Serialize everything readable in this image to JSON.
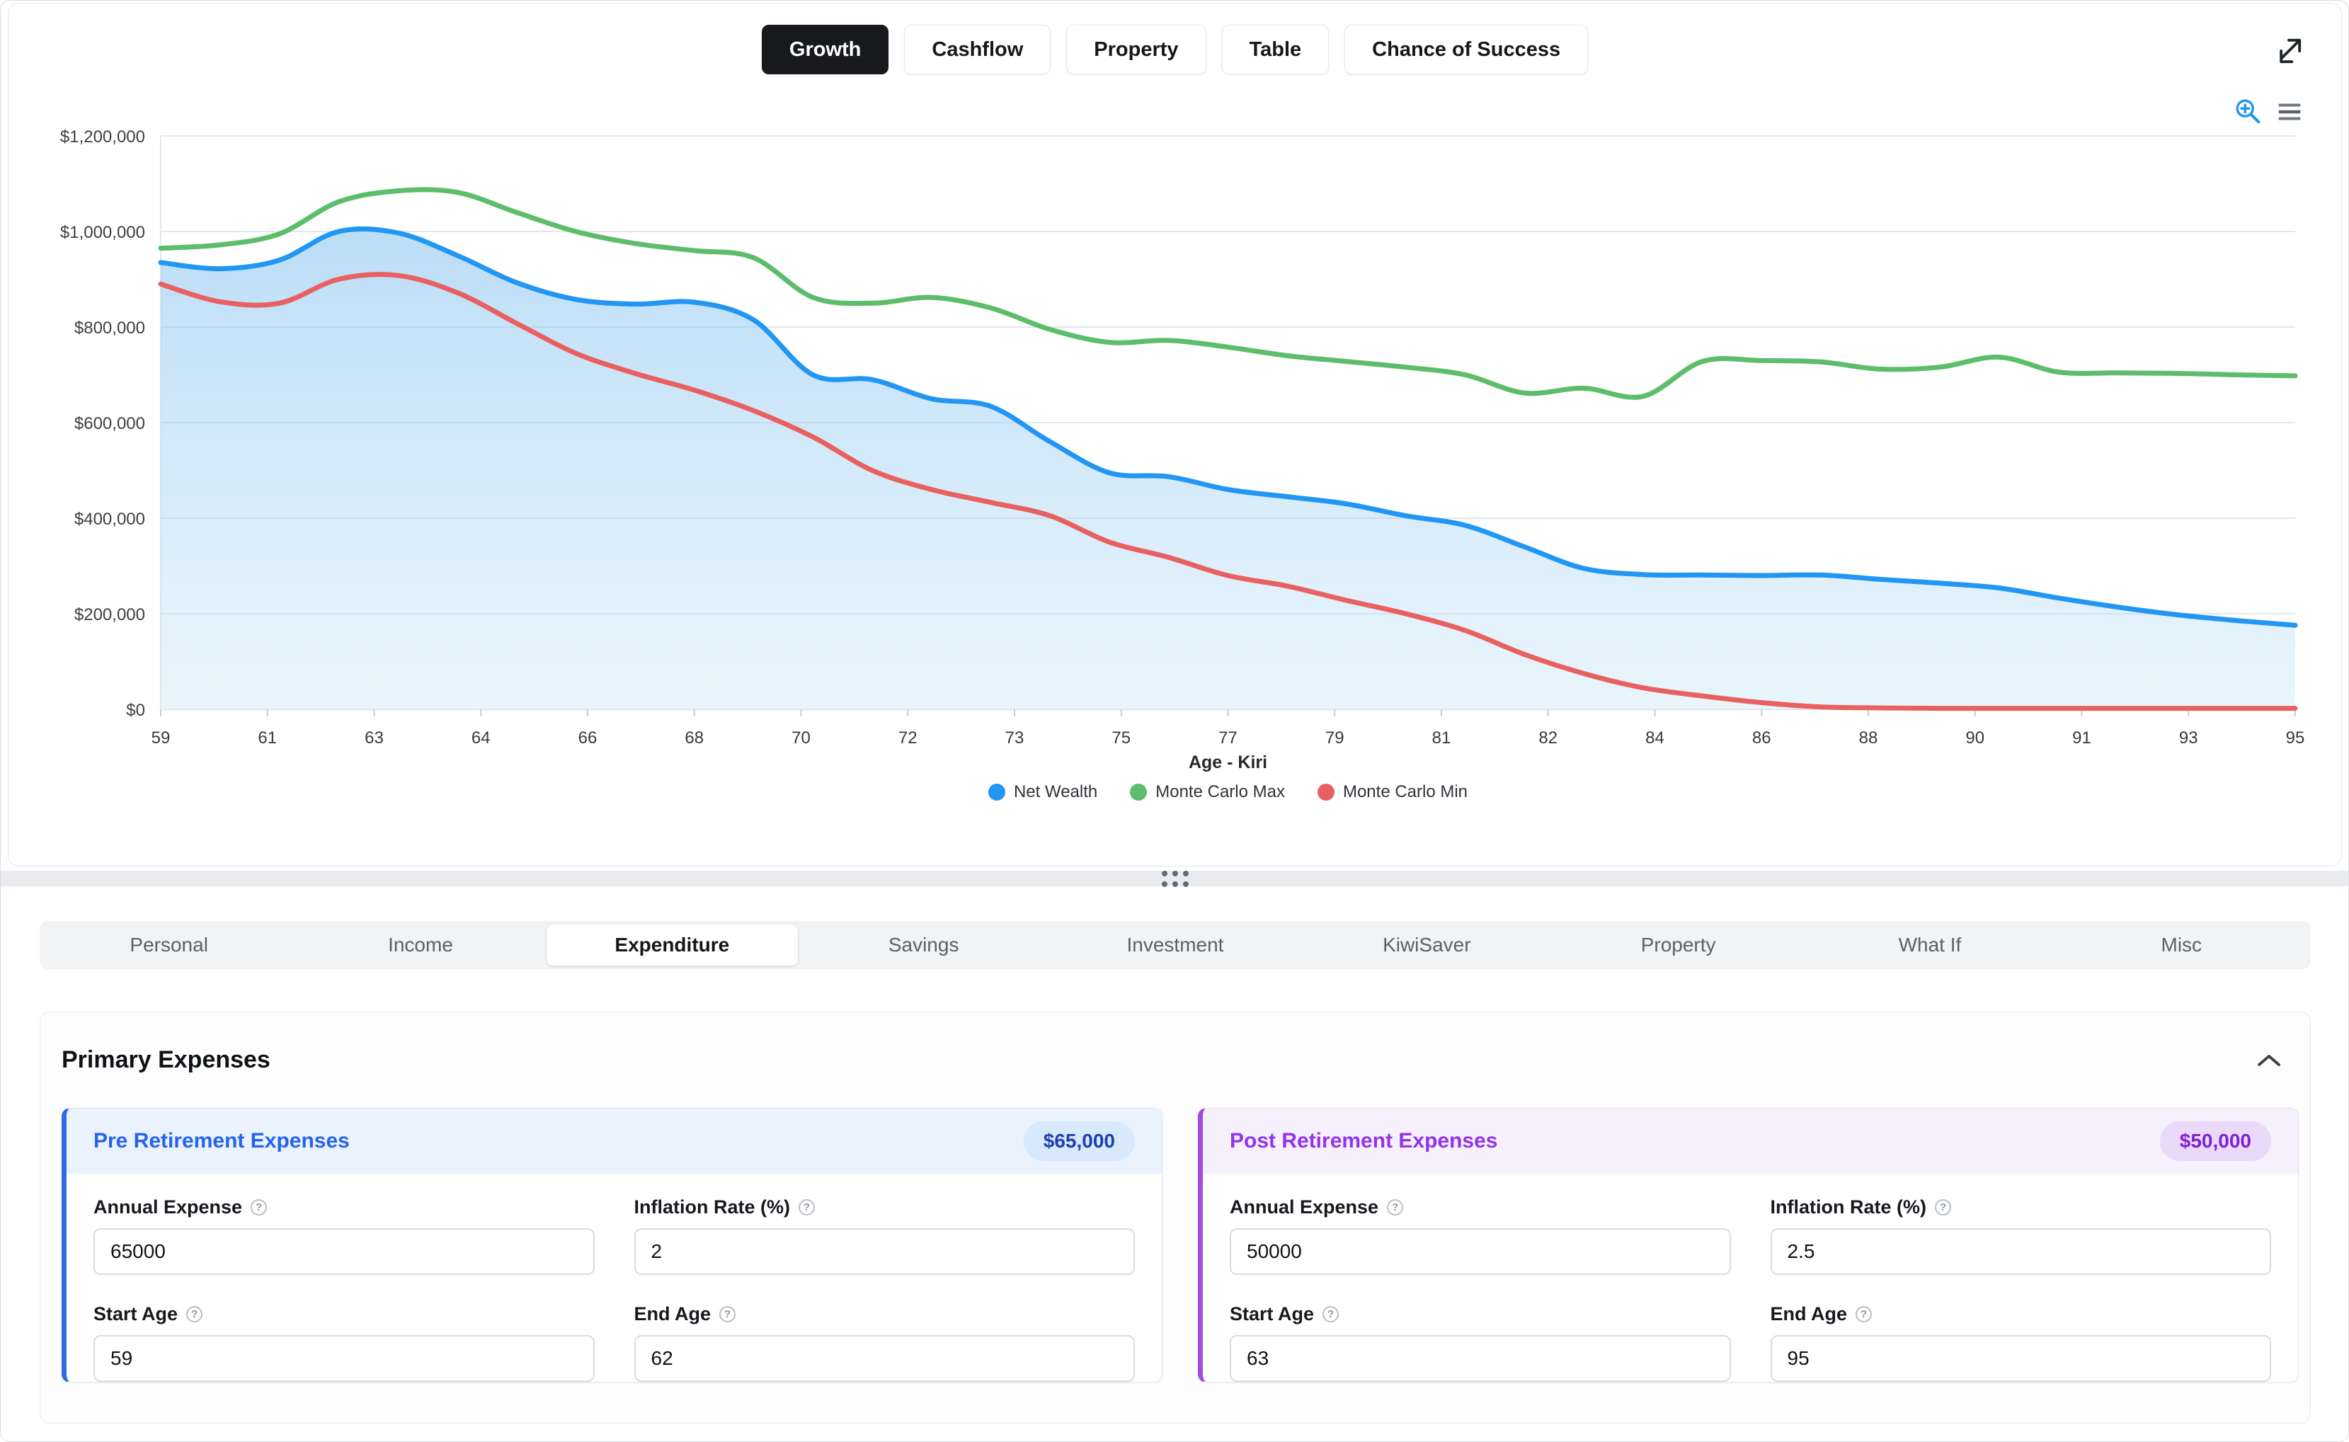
{
  "toolbar_tabs": [
    {
      "label": "Growth",
      "active": true
    },
    {
      "label": "Cashflow",
      "active": false
    },
    {
      "label": "Property",
      "active": false
    },
    {
      "label": "Table",
      "active": false
    },
    {
      "label": "Chance of Success",
      "active": false
    }
  ],
  "chart_data": {
    "type": "line",
    "x": [
      59,
      60,
      61,
      62,
      63,
      64,
      65,
      66,
      67,
      68,
      69,
      70,
      71,
      72,
      73,
      74,
      75,
      76,
      77,
      78,
      79,
      80,
      81,
      82,
      83,
      84,
      85,
      86,
      87,
      88,
      89,
      90,
      91,
      92,
      93,
      94,
      95
    ],
    "x_tick_labels": [
      "59",
      "61",
      "63",
      "64",
      "66",
      "68",
      "70",
      "72",
      "73",
      "75",
      "77",
      "79",
      "81",
      "82",
      "84",
      "86",
      "88",
      "90",
      "91",
      "93",
      "95"
    ],
    "xlabel": "Age - Kiri",
    "ylim": [
      0,
      1200000
    ],
    "grid": true,
    "legend_position": "bottom",
    "y_ticks": [
      {
        "label": "$1,200,000",
        "value": 1200000
      },
      {
        "label": "$1,000,000",
        "value": 1000000
      },
      {
        "label": "$800,000",
        "value": 800000
      },
      {
        "label": "$600,000",
        "value": 600000
      },
      {
        "label": "$400,000",
        "value": 400000
      },
      {
        "label": "$200,000",
        "value": 200000
      },
      {
        "label": "$0",
        "value": 0
      }
    ],
    "series": [
      {
        "name": "Net Wealth",
        "color": "#2196f3",
        "fill": true,
        "values": [
          935000,
          922000,
          940000,
          1000000,
          997000,
          950000,
          893000,
          858000,
          848000,
          852000,
          815000,
          700000,
          690000,
          650000,
          634000,
          560000,
          495000,
          487000,
          460000,
          445000,
          430000,
          405000,
          385000,
          340000,
          295000,
          282000,
          281000,
          280000,
          281000,
          272000,
          264000,
          254000,
          233000,
          214000,
          198000,
          186000,
          176000
        ]
      },
      {
        "name": "Monte Carlo Max",
        "color": "#5cbd6a",
        "fill": false,
        "values": [
          965000,
          972000,
          995000,
          1062000,
          1085000,
          1082000,
          1040000,
          1000000,
          975000,
          960000,
          945000,
          862000,
          850000,
          862000,
          840000,
          795000,
          768000,
          772000,
          758000,
          740000,
          728000,
          716000,
          700000,
          662000,
          672000,
          655000,
          728000,
          730000,
          727000,
          712000,
          716000,
          737000,
          706000,
          704000,
          703000,
          700000,
          698000
        ]
      },
      {
        "name": "Monte Carlo Min",
        "color": "#e96060",
        "fill": false,
        "values": [
          890000,
          853000,
          850000,
          900000,
          908000,
          872000,
          808000,
          745000,
          703000,
          668000,
          625000,
          570000,
          500000,
          460000,
          433000,
          405000,
          350000,
          318000,
          280000,
          258000,
          228000,
          200000,
          165000,
          115000,
          75000,
          45000,
          28000,
          14000,
          5000,
          3000,
          2000,
          2000,
          2000,
          2000,
          2000,
          2000,
          2000
        ]
      }
    ],
    "area_fill_top": "rgba(120,188,238,0.50)",
    "area_fill_bottom": "rgba(205,232,250,0.42)"
  },
  "section_tabs": [
    {
      "label": "Personal",
      "active": false
    },
    {
      "label": "Income",
      "active": false
    },
    {
      "label": "Expenditure",
      "active": true
    },
    {
      "label": "Savings",
      "active": false
    },
    {
      "label": "Investment",
      "active": false
    },
    {
      "label": "KiwiSaver",
      "active": false
    },
    {
      "label": "Property",
      "active": false
    },
    {
      "label": "What If",
      "active": false
    },
    {
      "label": "Misc",
      "active": false
    }
  ],
  "primary_expenses": {
    "title": "Primary Expenses",
    "cards": [
      {
        "title": "Pre Retirement Expenses",
        "badge": "$65,000",
        "accent": "#2e6be5",
        "header_bg": "#e9f2fd",
        "title_color": "#2563eb",
        "badge_bg": "#d7e9fb",
        "badge_text": "#1e40af",
        "fields": [
          {
            "label": "Annual Expense",
            "value": "65000"
          },
          {
            "label": "Inflation Rate (%)",
            "value": "2"
          },
          {
            "label": "Start Age",
            "value": "59"
          },
          {
            "label": "End Age",
            "value": "62"
          }
        ]
      },
      {
        "title": "Post Retirement Expenses",
        "badge": "$50,000",
        "accent": "#a34be0",
        "header_bg": "#f6f0fd",
        "title_color": "#9333ea",
        "badge_bg": "#ead9f9",
        "badge_text": "#7e22ce",
        "fields": [
          {
            "label": "Annual Expense",
            "value": "50000"
          },
          {
            "label": "Inflation Rate (%)",
            "value": "2.5"
          },
          {
            "label": "Start Age",
            "value": "63"
          },
          {
            "label": "End Age",
            "value": "95"
          }
        ]
      }
    ]
  },
  "icons": {
    "help_glyph": "?"
  }
}
